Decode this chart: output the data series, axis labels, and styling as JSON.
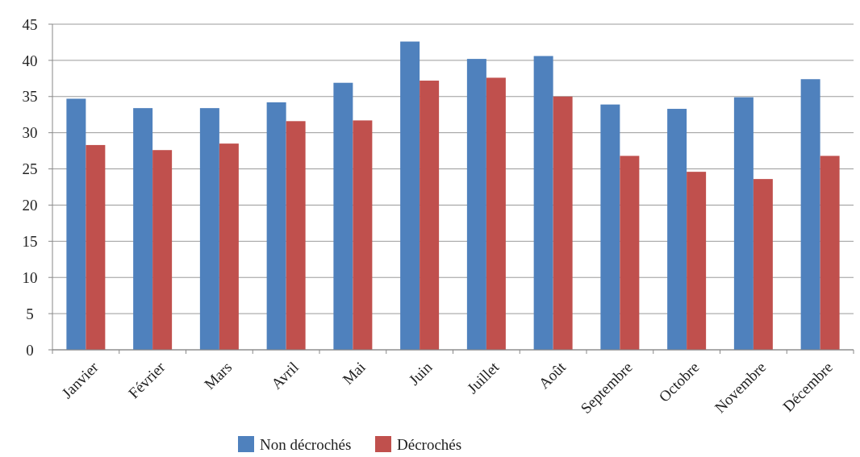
{
  "chart_data": {
    "type": "bar",
    "categories": [
      "Janvier",
      "Février",
      "Mars",
      "Avril",
      "Mai",
      "Juin",
      "Juillet",
      "Août",
      "Septembre",
      "Octobre",
      "Novembre",
      "Décembre"
    ],
    "series": [
      {
        "name": "Non décrochés",
        "color": "#4f81bd",
        "values": [
          34.7,
          33.4,
          33.4,
          34.2,
          36.9,
          42.6,
          40.2,
          40.6,
          33.9,
          33.3,
          34.9,
          37.4
        ]
      },
      {
        "name": "Décrochés",
        "color": "#c0504d",
        "values": [
          28.3,
          27.6,
          28.5,
          31.6,
          31.7,
          37.2,
          37.6,
          35.0,
          26.8,
          24.6,
          23.6,
          26.8
        ]
      }
    ],
    "ylim": [
      0,
      45
    ],
    "yticks": [
      0,
      5,
      10,
      15,
      20,
      25,
      30,
      35,
      40,
      45
    ],
    "grid": "y",
    "legend": "bottom"
  }
}
